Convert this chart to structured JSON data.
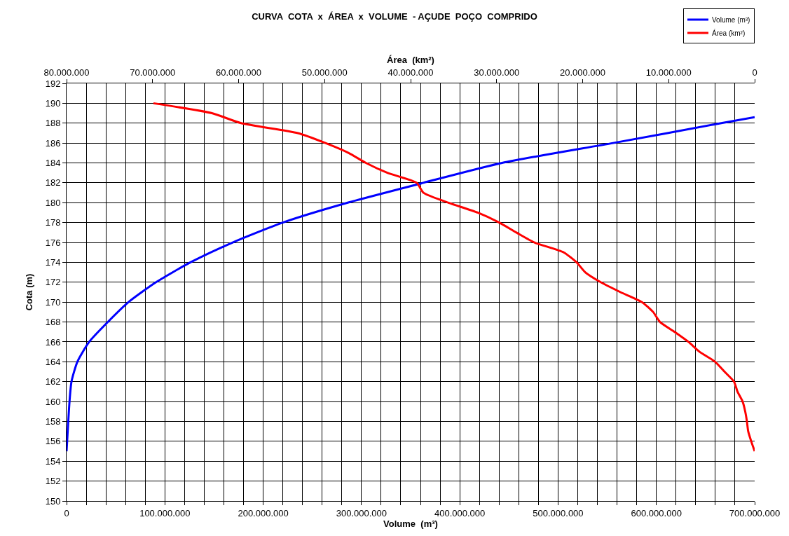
{
  "chart_data": {
    "type": "line",
    "title": "CURVA  COTA  x  ÁREA  x  VOLUME  - AÇUDE  POÇO  COMPRIDO",
    "xlabel": "Volume  (m³)",
    "x2label": "Área  (km²)",
    "ylabel": "Cota (m)",
    "xlim": [
      0,
      700000000
    ],
    "x2lim": [
      80000000,
      0
    ],
    "ylim": [
      150,
      192
    ],
    "xticks": [
      {
        "value": 0,
        "label": "0"
      },
      {
        "value": 20000000,
        "label": null
      },
      {
        "value": 40000000,
        "label": null
      },
      {
        "value": 60000000,
        "label": null
      },
      {
        "value": 80000000,
        "label": null
      },
      {
        "value": 100000000,
        "label": "100.000.000"
      },
      {
        "value": 120000000,
        "label": null
      },
      {
        "value": 140000000,
        "label": null
      },
      {
        "value": 160000000,
        "label": null
      },
      {
        "value": 180000000,
        "label": null
      },
      {
        "value": 200000000,
        "label": "200.000.000"
      },
      {
        "value": 220000000,
        "label": null
      },
      {
        "value": 240000000,
        "label": null
      },
      {
        "value": 260000000,
        "label": null
      },
      {
        "value": 280000000,
        "label": null
      },
      {
        "value": 300000000,
        "label": "300.000.000"
      },
      {
        "value": 320000000,
        "label": null
      },
      {
        "value": 340000000,
        "label": null
      },
      {
        "value": 360000000,
        "label": null
      },
      {
        "value": 380000000,
        "label": null
      },
      {
        "value": 400000000,
        "label": "400.000.000"
      },
      {
        "value": 420000000,
        "label": null
      },
      {
        "value": 440000000,
        "label": null
      },
      {
        "value": 460000000,
        "label": null
      },
      {
        "value": 480000000,
        "label": null
      },
      {
        "value": 500000000,
        "label": "500.000.000"
      },
      {
        "value": 520000000,
        "label": null
      },
      {
        "value": 540000000,
        "label": null
      },
      {
        "value": 560000000,
        "label": null
      },
      {
        "value": 580000000,
        "label": null
      },
      {
        "value": 600000000,
        "label": "600.000.000"
      },
      {
        "value": 620000000,
        "label": null
      },
      {
        "value": 640000000,
        "label": null
      },
      {
        "value": 660000000,
        "label": null
      },
      {
        "value": 680000000,
        "label": null
      },
      {
        "value": 700000000,
        "label": "700.000.000"
      }
    ],
    "x2ticks": [
      {
        "value": 80000000,
        "label": "80.000.000"
      },
      {
        "value": 70000000,
        "label": "70.000.000"
      },
      {
        "value": 60000000,
        "label": "60.000.000"
      },
      {
        "value": 50000000,
        "label": "50.000.000"
      },
      {
        "value": 40000000,
        "label": "40.000.000"
      },
      {
        "value": 30000000,
        "label": "30.000.000"
      },
      {
        "value": 20000000,
        "label": "20.000.000"
      },
      {
        "value": 10000000,
        "label": "10.000.000"
      },
      0
    ],
    "yticks": [
      150,
      152,
      154,
      156,
      158,
      160,
      162,
      164,
      166,
      168,
      170,
      172,
      174,
      176,
      178,
      180,
      182,
      184,
      186,
      188,
      190,
      192
    ],
    "grid": true,
    "legend": "top right",
    "marker": "none",
    "line_style": "solid",
    "series": [
      {
        "name": "Volume (m³)",
        "color": "#0000ff",
        "x": [
          0,
          3000000,
          5000000,
          11000000,
          23000000,
          42000000,
          63000000,
          91000000,
          126000000,
          169000000,
          220000000,
          286000000,
          363000000,
          443000000,
          556000000,
          666000000,
          700000000
        ],
        "values": [
          155,
          160,
          162,
          164,
          166,
          168,
          170,
          172,
          174,
          176,
          178,
          180,
          182,
          184,
          186,
          188,
          188.6
        ]
      },
      {
        "name": "Área (km²)",
        "color": "#ff0000",
        "axis": "x2",
        "x": [
          69900000,
          63100000,
          59700000,
          53100000,
          49900000,
          47200000,
          45200000,
          42700000,
          39300000,
          38500000,
          35600000,
          32200000,
          29700000,
          27700000,
          25600000,
          22200000,
          20700000,
          19700000,
          17900000,
          15600000,
          13100000,
          11800000,
          11000000,
          9300000,
          7700000,
          6400000,
          4600000,
          3500000,
          2400000,
          2000000,
          1400000,
          1100000,
          900000,
          750000,
          400000,
          0
        ],
        "values": [
          190,
          189,
          188,
          187,
          186,
          185,
          184,
          183,
          182,
          181,
          180,
          179,
          178,
          177,
          176,
          175,
          174,
          173,
          172,
          171,
          170,
          169,
          168,
          167,
          166,
          165,
          164,
          163,
          162,
          161,
          160,
          159,
          158,
          157,
          156,
          155
        ]
      }
    ]
  }
}
